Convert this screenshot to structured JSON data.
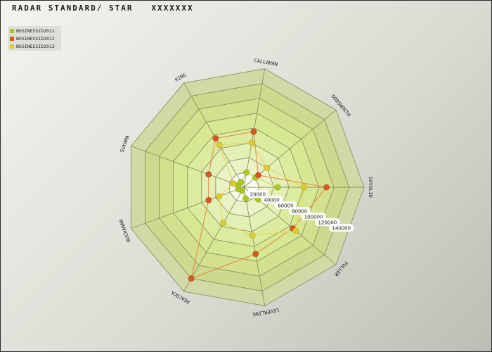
{
  "chart_data": {
    "type": "radar",
    "title": "RADAR STANDARD/ STAR   XXXXXXX",
    "axes": [
      "DAVOLIO",
      "FULLER",
      "LEVERLING",
      "PEACOCK",
      "BUCHANAN",
      "SUYAMA",
      "KING",
      "CALLAHAN",
      "DODSWORTH"
    ],
    "ticks": [
      20000,
      40000,
      60000,
      80000,
      100000,
      120000,
      140000
    ],
    "rmax": 160000,
    "grid": true,
    "legend_position": "top-left",
    "series": [
      {
        "name": "BUSINESSID2011",
        "color": "#a9c91f",
        "values": [
          45000,
          25000,
          15000,
          5000,
          8000,
          8000,
          8000,
          20000,
          20000
        ]
      },
      {
        "name": "BUSINESSID2012",
        "color": "#d9541e",
        "values": [
          110000,
          85000,
          90000,
          140000,
          50000,
          50000,
          75000,
          75000,
          25000
        ]
      },
      {
        "name": "BUSINESSID2013",
        "color": "#dccd2c",
        "values": [
          80000,
          90000,
          65000,
          55000,
          35000,
          15000,
          65000,
          60000,
          40000
        ]
      }
    ],
    "band_colors": [
      "#f2f7d8",
      "#eaf3c6",
      "#e3f0b5",
      "#dcec9f",
      "#d7e892",
      "#d3e18f",
      "#cdd98d",
      "#d3d8a7"
    ],
    "line_colors": {
      "BUSINESSID2011": "#c6da69",
      "BUSINESSID2012": "#e88a4a",
      "BUSINESSID2013": "#e2d65c"
    }
  }
}
